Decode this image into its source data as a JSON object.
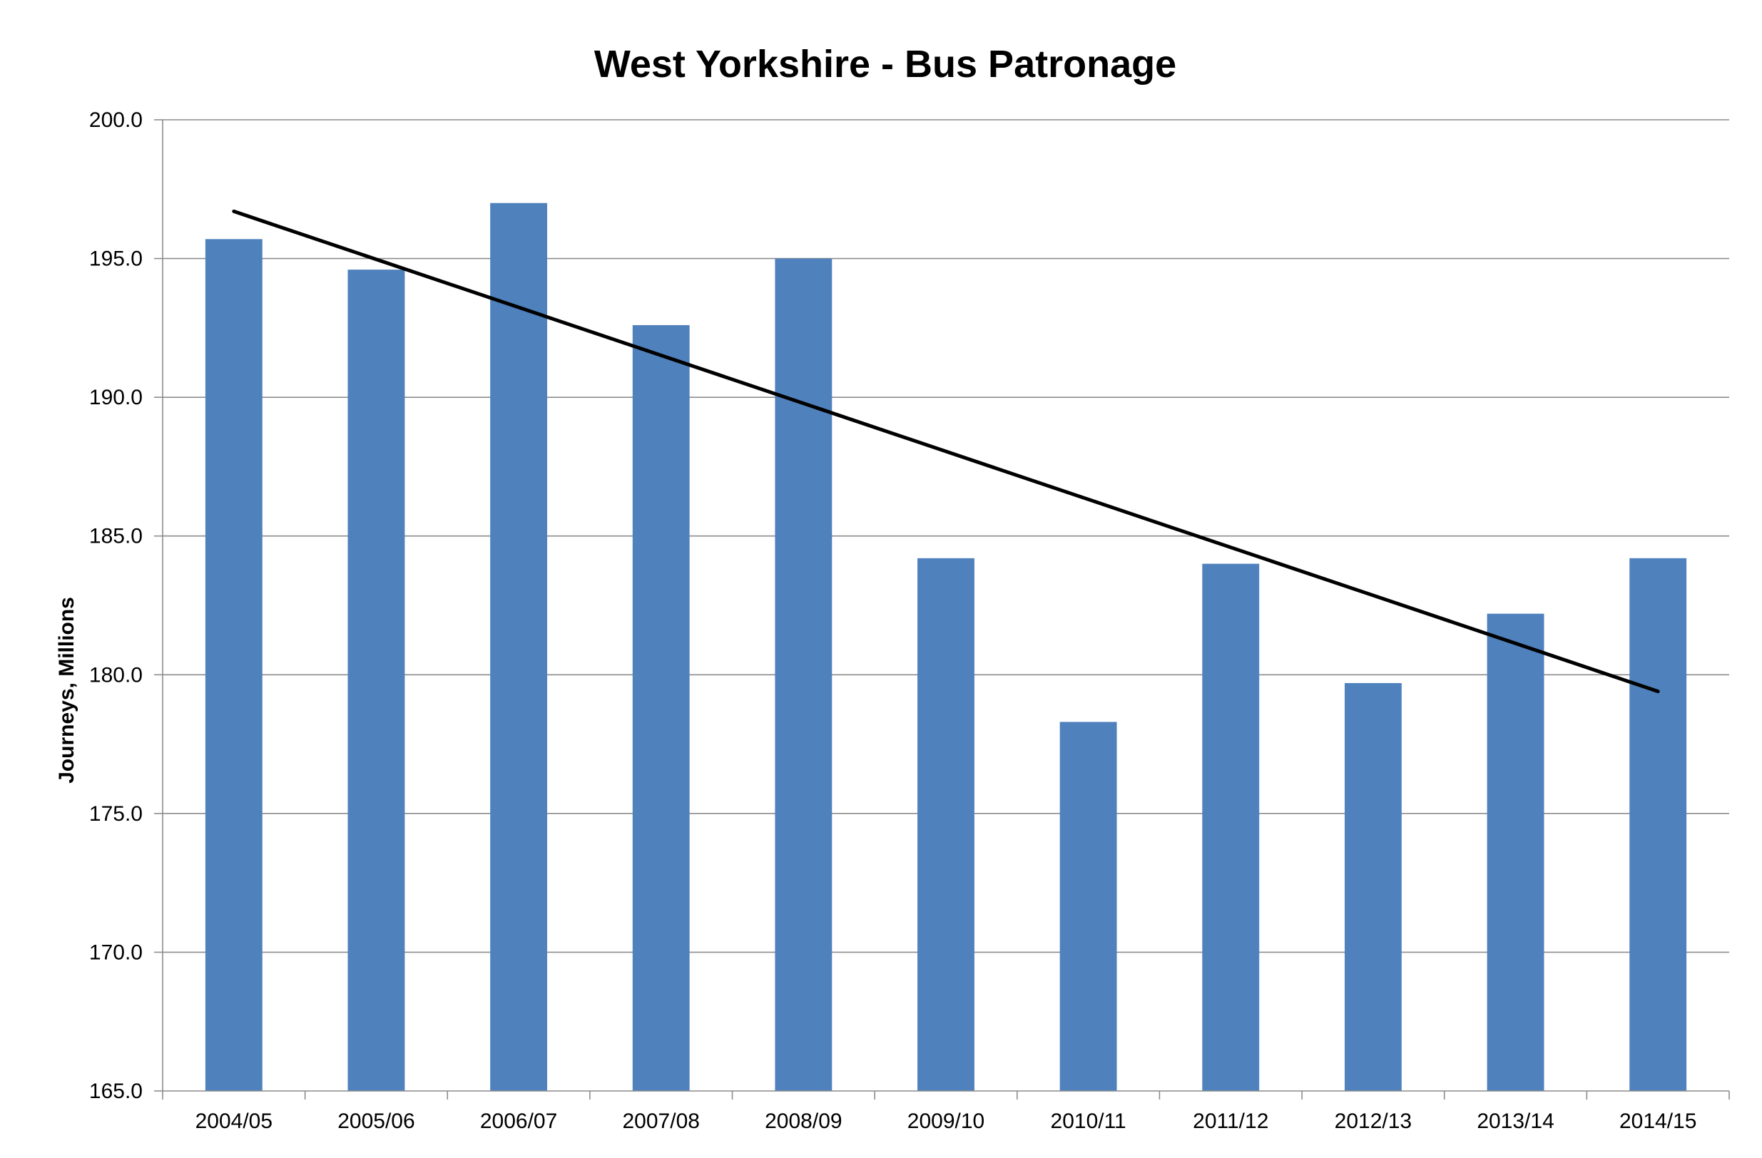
{
  "chart_data": {
    "type": "bar",
    "title": "West Yorkshire - Bus Patronage",
    "xlabel": "",
    "ylabel": "Journeys, Millions",
    "ylim": [
      165.0,
      200.0
    ],
    "y_ticks": [
      "165.0",
      "170.0",
      "175.0",
      "180.0",
      "185.0",
      "190.0",
      "195.0",
      "200.0"
    ],
    "categories": [
      "2004/05",
      "2005/06",
      "2006/07",
      "2007/08",
      "2008/09",
      "2009/10",
      "2010/11",
      "2011/12",
      "2012/13",
      "2013/14",
      "2014/15"
    ],
    "values": [
      195.7,
      194.6,
      197.0,
      192.6,
      195.0,
      184.2,
      178.3,
      184.0,
      179.7,
      182.2,
      184.2
    ],
    "trendline": {
      "type": "linear",
      "start": 196.7,
      "end": 179.4
    },
    "grid": true,
    "legend": "none",
    "colors": {
      "bar": "#4f81bd",
      "trendline": "#000000"
    }
  }
}
